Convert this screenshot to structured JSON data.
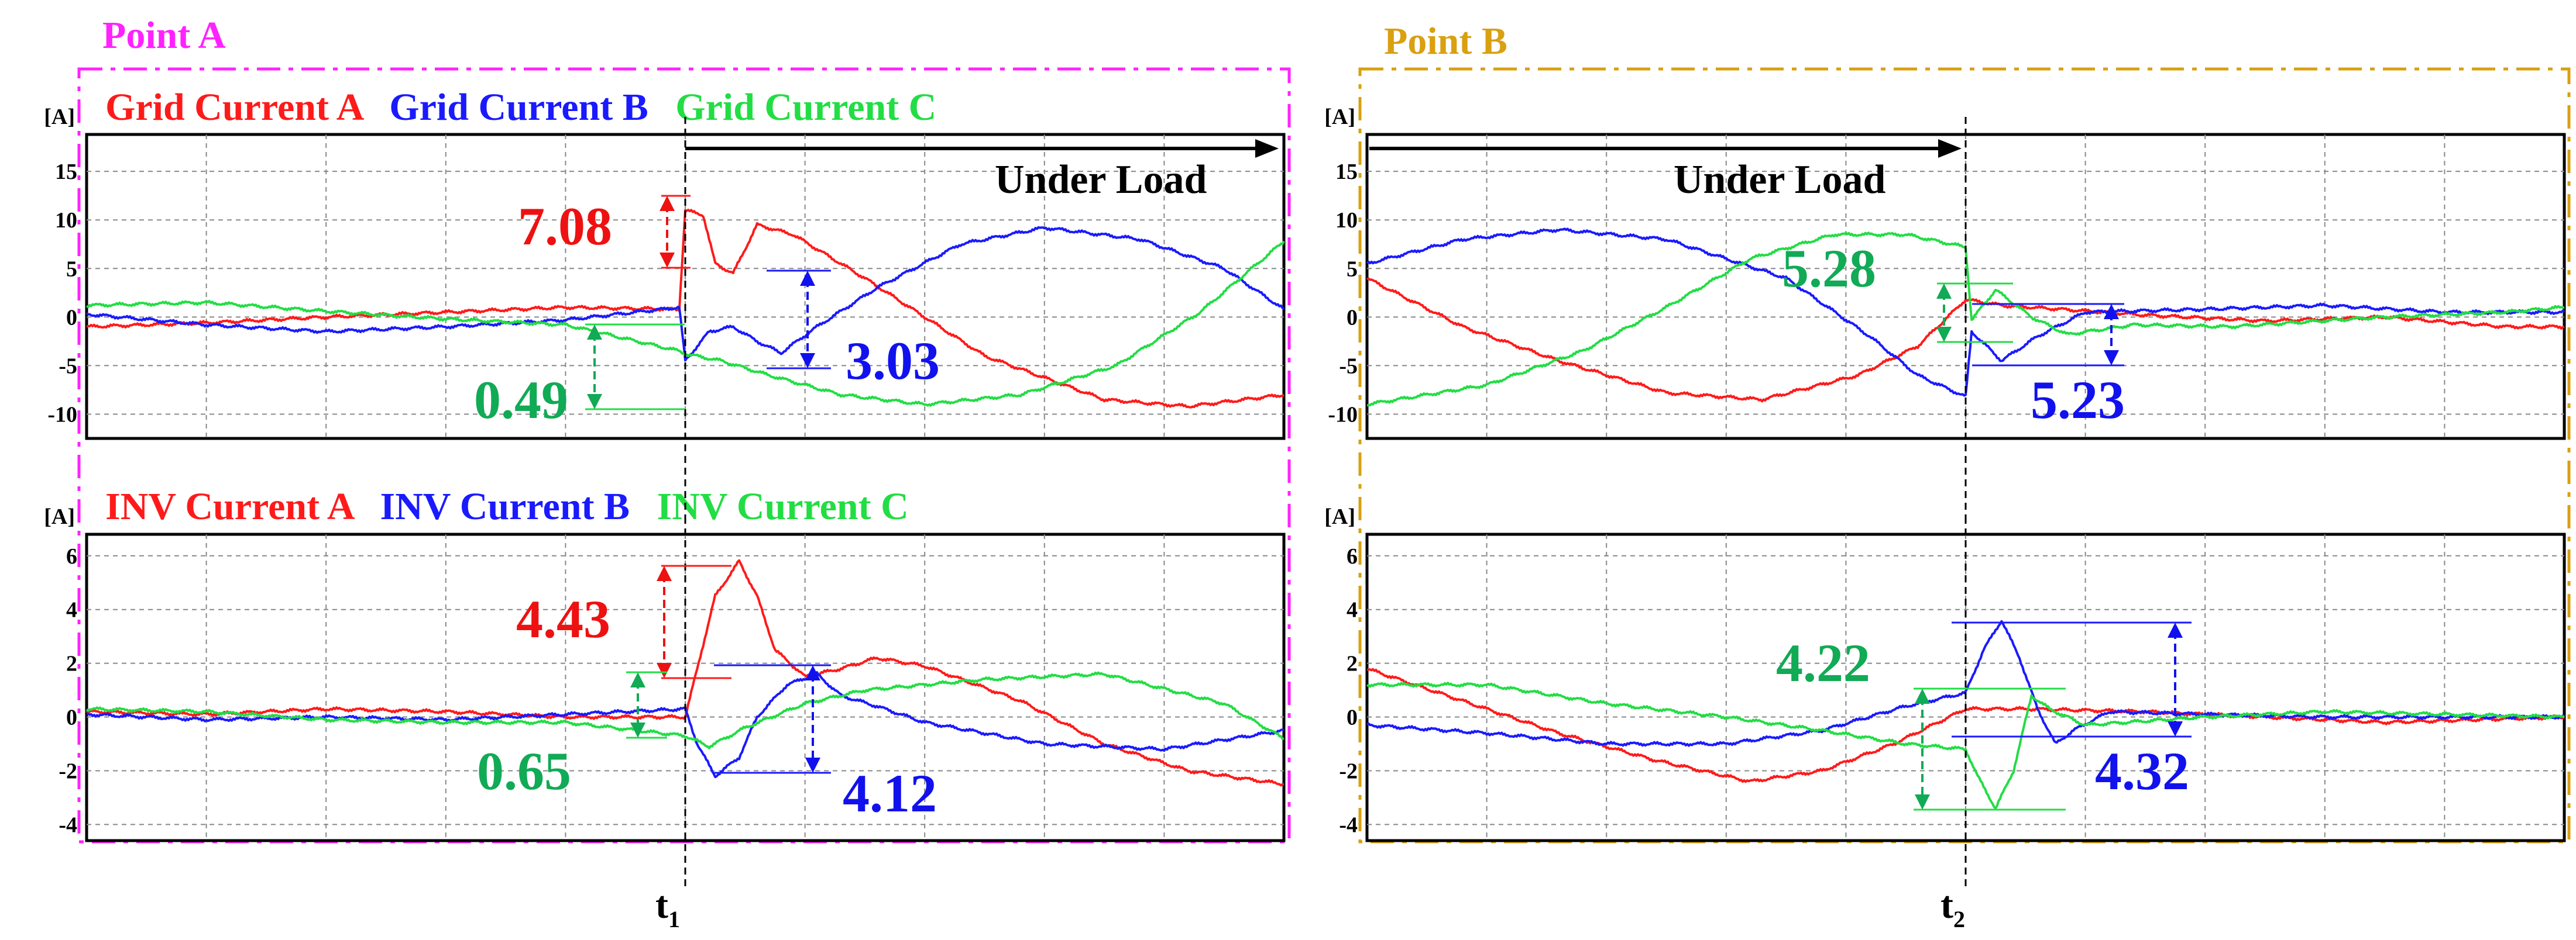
{
  "colors": {
    "phase_a": "#ff1a1a",
    "phase_b": "#1a1aff",
    "phase_c": "#22dd44",
    "point_a_frame": "#ff22ff",
    "point_b_frame": "#d9a010",
    "anno_red": "#ee1111",
    "anno_blue": "#1111ee",
    "anno_green": "#11aa55"
  },
  "sections": [
    {
      "title": "Point A",
      "time_marker": "t",
      "time_marker_sub": "1"
    },
    {
      "title": "Point B",
      "time_marker": "t",
      "time_marker_sub": "2"
    }
  ],
  "legends": {
    "grid": [
      "Grid Current A",
      "Grid Current B",
      "Grid Current C"
    ],
    "inv": [
      "INV Current A",
      "INV Current B",
      "INV Current C"
    ]
  },
  "under_load_label": "Under Load",
  "chart_data": [
    {
      "id": "pointA-grid",
      "type": "line",
      "unit": "[A]",
      "xlim": [
        0,
        10
      ],
      "ylim": [
        -12.5,
        18.8
      ],
      "yticks": [
        15,
        10,
        5,
        0,
        -5,
        -10
      ],
      "event_x": 5.0,
      "series": [
        {
          "name": "Grid Current A",
          "points": [
            [
              0,
              -1
            ],
            [
              1,
              -0.6
            ],
            [
              2,
              0
            ],
            [
              3,
              0.5
            ],
            [
              4,
              1
            ],
            [
              4.95,
              0.8
            ],
            [
              5.0,
              11
            ],
            [
              5.15,
              10.5
            ],
            [
              5.25,
              5.5
            ],
            [
              5.4,
              4.5
            ],
            [
              5.6,
              9.5
            ],
            [
              5.9,
              8.5
            ],
            [
              6.5,
              4
            ],
            [
              7.5,
              -4
            ],
            [
              8.5,
              -8.5
            ],
            [
              9.2,
              -9.2
            ],
            [
              10,
              -8
            ]
          ]
        },
        {
          "name": "Grid Current B",
          "points": [
            [
              0,
              0.3
            ],
            [
              1,
              -0.8
            ],
            [
              2,
              -1.5
            ],
            [
              3,
              -1
            ],
            [
              4,
              -0.3
            ],
            [
              4.95,
              1
            ],
            [
              5.0,
              -4.5
            ],
            [
              5.2,
              -1.5
            ],
            [
              5.4,
              -1
            ],
            [
              5.6,
              -2.5
            ],
            [
              5.8,
              -3.7
            ],
            [
              6.1,
              -1
            ],
            [
              6.6,
              3
            ],
            [
              7.3,
              7.5
            ],
            [
              8.0,
              9.2
            ],
            [
              8.8,
              8
            ],
            [
              9.5,
              5
            ],
            [
              10,
              0.8
            ]
          ]
        },
        {
          "name": "Grid Current C",
          "points": [
            [
              0,
              1.2
            ],
            [
              1,
              1.5
            ],
            [
              2,
              0.6
            ],
            [
              3,
              -0.2
            ],
            [
              4,
              -0.8
            ],
            [
              4.95,
              -3.5
            ],
            [
              5.0,
              -3.8
            ],
            [
              5.3,
              -4.5
            ],
            [
              5.7,
              -6
            ],
            [
              6.3,
              -8
            ],
            [
              7.0,
              -9
            ],
            [
              7.8,
              -8
            ],
            [
              8.6,
              -5
            ],
            [
              9.3,
              0.5
            ],
            [
              10,
              7.8
            ]
          ]
        }
      ],
      "annotations": [
        {
          "text": "7.08",
          "color": "red"
        },
        {
          "text": "3.03",
          "color": "blue"
        },
        {
          "text": "0.49",
          "color": "green"
        }
      ]
    },
    {
      "id": "pointA-inv",
      "type": "line",
      "unit": "[A]",
      "xlim": [
        0,
        10
      ],
      "ylim": [
        -4.6,
        6.8
      ],
      "yticks": [
        6,
        4,
        2,
        0,
        -2,
        -4
      ],
      "event_x": 5.0,
      "series": [
        {
          "name": "INV Current A",
          "points": [
            [
              0,
              0.2
            ],
            [
              1,
              0.1
            ],
            [
              2,
              0.3
            ],
            [
              3,
              0.2
            ],
            [
              4,
              0
            ],
            [
              5.0,
              0
            ],
            [
              5.1,
              1.8
            ],
            [
              5.25,
              4.5
            ],
            [
              5.45,
              5.8
            ],
            [
              5.6,
              4.5
            ],
            [
              5.75,
              2.5
            ],
            [
              6.0,
              1.5
            ],
            [
              6.3,
              1.8
            ],
            [
              6.6,
              2.2
            ],
            [
              7.0,
              1.9
            ],
            [
              7.8,
              0.6
            ],
            [
              8.5,
              -1
            ],
            [
              9.2,
              -2
            ],
            [
              10,
              -2.5
            ]
          ]
        },
        {
          "name": "INV Current B",
          "points": [
            [
              0,
              0.1
            ],
            [
              1,
              -0.1
            ],
            [
              2,
              0
            ],
            [
              3,
              -0.1
            ],
            [
              4,
              0.1
            ],
            [
              5.0,
              0.3
            ],
            [
              5.1,
              -1
            ],
            [
              5.25,
              -2.2
            ],
            [
              5.45,
              -1.5
            ],
            [
              5.6,
              0
            ],
            [
              5.85,
              1.2
            ],
            [
              6.1,
              1.6
            ],
            [
              6.3,
              0.8
            ],
            [
              6.6,
              0.4
            ],
            [
              7.0,
              -0.2
            ],
            [
              8.0,
              -1.0
            ],
            [
              9.0,
              -1.2
            ],
            [
              10,
              -0.5
            ]
          ]
        },
        {
          "name": "INV Current C",
          "points": [
            [
              0,
              0.3
            ],
            [
              1,
              0.2
            ],
            [
              2,
              -0.1
            ],
            [
              3,
              -0.2
            ],
            [
              4,
              -0.2
            ],
            [
              5.0,
              -0.7
            ],
            [
              5.2,
              -1.1
            ],
            [
              5.5,
              -0.4
            ],
            [
              6.0,
              0.5
            ],
            [
              6.5,
              1
            ],
            [
              7.5,
              1.4
            ],
            [
              8.5,
              1.6
            ],
            [
              9.5,
              0.5
            ],
            [
              10,
              -0.8
            ]
          ]
        }
      ],
      "annotations": [
        {
          "text": "4.43",
          "color": "red"
        },
        {
          "text": "4.12",
          "color": "blue"
        },
        {
          "text": "0.65",
          "color": "green"
        }
      ]
    },
    {
      "id": "pointB-grid",
      "type": "line",
      "unit": "[A]",
      "xlim": [
        0,
        10
      ],
      "ylim": [
        -12.5,
        18.8
      ],
      "yticks": [
        15,
        10,
        5,
        0,
        -5,
        -10
      ],
      "event_x": 5.0,
      "series": [
        {
          "name": "Grid Current A",
          "points": [
            [
              0,
              4
            ],
            [
              0.8,
              -1
            ],
            [
              1.6,
              -4.5
            ],
            [
              2.5,
              -7.8
            ],
            [
              3.3,
              -8.5
            ],
            [
              4.1,
              -6
            ],
            [
              4.6,
              -3
            ],
            [
              5.0,
              1.8
            ],
            [
              5.3,
              1.2
            ],
            [
              5.8,
              0.8
            ],
            [
              6.5,
              0.2
            ],
            [
              7.5,
              -0.4
            ],
            [
              8.5,
              0
            ],
            [
              9.5,
              -1
            ],
            [
              10,
              -1
            ]
          ]
        },
        {
          "name": "Grid Current B",
          "points": [
            [
              0,
              5.5
            ],
            [
              0.8,
              8
            ],
            [
              1.6,
              9
            ],
            [
              2.5,
              8
            ],
            [
              3.5,
              4
            ],
            [
              4.2,
              -2
            ],
            [
              4.6,
              -6
            ],
            [
              5.0,
              -8.2
            ],
            [
              5.05,
              -1.5
            ],
            [
              5.3,
              -4.5
            ],
            [
              5.6,
              -2
            ],
            [
              6.0,
              0.5
            ],
            [
              7.0,
              0.8
            ],
            [
              8.0,
              1.2
            ],
            [
              9.0,
              0.5
            ],
            [
              10,
              0.5
            ]
          ]
        },
        {
          "name": "Grid Current C",
          "points": [
            [
              0,
              -9
            ],
            [
              1,
              -7
            ],
            [
              1.8,
              -3.5
            ],
            [
              2.5,
              1
            ],
            [
              3.2,
              6
            ],
            [
              3.9,
              8.5
            ],
            [
              4.5,
              8.5
            ],
            [
              5.0,
              7.2
            ],
            [
              5.05,
              -0.3
            ],
            [
              5.25,
              2.8
            ],
            [
              5.55,
              0
            ],
            [
              5.85,
              -1.8
            ],
            [
              6.4,
              -0.8
            ],
            [
              7.2,
              -1
            ],
            [
              8.5,
              0
            ],
            [
              9.5,
              0.5
            ],
            [
              10,
              1
            ]
          ]
        }
      ],
      "annotations": [
        {
          "text": "5.28",
          "color": "green"
        },
        {
          "text": "5.23",
          "color": "blue"
        }
      ]
    },
    {
      "id": "pointB-inv",
      "type": "line",
      "unit": "[A]",
      "xlim": [
        0,
        10
      ],
      "ylim": [
        -4.6,
        6.8
      ],
      "yticks": [
        6,
        4,
        2,
        0,
        -2,
        -4
      ],
      "event_x": 5.0,
      "series": [
        {
          "name": "INV Current A",
          "points": [
            [
              0,
              1.8
            ],
            [
              0.8,
              0.6
            ],
            [
              1.6,
              -0.6
            ],
            [
              2.4,
              -1.6
            ],
            [
              3.2,
              -2.4
            ],
            [
              3.8,
              -2
            ],
            [
              4.4,
              -1
            ],
            [
              5.0,
              0.3
            ],
            [
              5.5,
              0.3
            ],
            [
              6.5,
              0.2
            ],
            [
              7.5,
              0
            ],
            [
              8.5,
              -0.2
            ],
            [
              10,
              0
            ]
          ]
        },
        {
          "name": "INV Current B",
          "points": [
            [
              0,
              -0.3
            ],
            [
              1,
              -0.6
            ],
            [
              2,
              -1
            ],
            [
              3,
              -1
            ],
            [
              3.8,
              -0.5
            ],
            [
              4.5,
              0.4
            ],
            [
              5.0,
              0.9
            ],
            [
              5.15,
              2.5
            ],
            [
              5.3,
              3.6
            ],
            [
              5.45,
              2.2
            ],
            [
              5.6,
              0.3
            ],
            [
              5.75,
              -1.0
            ],
            [
              5.9,
              -0.5
            ],
            [
              6.2,
              0.2
            ],
            [
              7.0,
              0.1
            ],
            [
              8.0,
              0
            ],
            [
              10,
              0
            ]
          ]
        },
        {
          "name": "INV Current C",
          "points": [
            [
              0,
              1.2
            ],
            [
              1,
              1.2
            ],
            [
              2,
              0.5
            ],
            [
              3,
              0
            ],
            [
              3.8,
              -0.5
            ],
            [
              4.5,
              -1
            ],
            [
              5.0,
              -1.2
            ],
            [
              5.1,
              -2.2
            ],
            [
              5.25,
              -3.4
            ],
            [
              5.4,
              -2
            ],
            [
              5.55,
              0.8
            ],
            [
              5.7,
              0.3
            ],
            [
              6.0,
              -0.3
            ],
            [
              7.0,
              0
            ],
            [
              8.0,
              0.2
            ],
            [
              10,
              0
            ]
          ]
        }
      ],
      "annotations": [
        {
          "text": "4.22",
          "color": "green"
        },
        {
          "text": "4.32",
          "color": "blue"
        }
      ]
    }
  ]
}
